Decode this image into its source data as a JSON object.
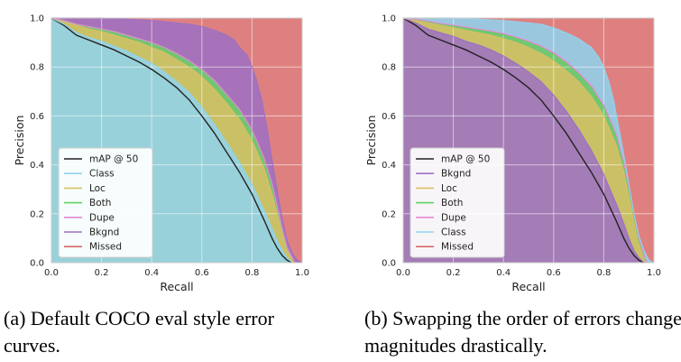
{
  "chart_data": [
    {
      "type": "area",
      "caption": "(a) Default COCO eval style error curves.",
      "xlabel": "Recall",
      "ylabel": "Precision",
      "xlim": [
        0,
        1
      ],
      "ylim": [
        0,
        1
      ],
      "xticks": [
        "0.0",
        "0.2",
        "0.4",
        "0.6",
        "0.8",
        "1.0"
      ],
      "yticks": [
        "0.0",
        "0.2",
        "0.4",
        "0.6",
        "0.8",
        "1.0"
      ],
      "grid": true,
      "legend_position": "bottom-left",
      "legend": [
        {
          "name": "mAP @ 50",
          "color": "#222222",
          "kind": "line"
        },
        {
          "name": "Class",
          "color": "#8fd3ee",
          "kind": "line"
        },
        {
          "name": "Loc",
          "color": "#d9c064",
          "kind": "line"
        },
        {
          "name": "Both",
          "color": "#5fd05f",
          "kind": "line"
        },
        {
          "name": "Dupe",
          "color": "#e68ad8",
          "kind": "line"
        },
        {
          "name": "Bkgnd",
          "color": "#9d70c4",
          "kind": "line"
        },
        {
          "name": "Missed",
          "color": "#d96a6a",
          "kind": "line"
        }
      ],
      "boundaries": [
        {
          "series": "mAP @ 50",
          "color": "#222222",
          "x": [
            0,
            0.05,
            0.1,
            0.15,
            0.2,
            0.25,
            0.3,
            0.35,
            0.4,
            0.45,
            0.5,
            0.55,
            0.6,
            0.65,
            0.7,
            0.75,
            0.8,
            0.85,
            0.88,
            0.9,
            0.92,
            0.94,
            0.96
          ],
          "y": [
            1.0,
            0.97,
            0.93,
            0.91,
            0.89,
            0.87,
            0.845,
            0.82,
            0.79,
            0.755,
            0.715,
            0.665,
            0.6,
            0.53,
            0.45,
            0.37,
            0.28,
            0.17,
            0.1,
            0.06,
            0.03,
            0.01,
            0.0
          ]
        },
        {
          "series": "Class",
          "color": "#8fd3ee",
          "x": [
            0,
            0.05,
            0.1,
            0.15,
            0.2,
            0.25,
            0.3,
            0.35,
            0.4,
            0.45,
            0.5,
            0.55,
            0.6,
            0.65,
            0.7,
            0.75,
            0.8,
            0.85,
            0.88,
            0.9,
            0.92,
            0.94,
            0.96
          ],
          "y": [
            1.0,
            0.975,
            0.94,
            0.92,
            0.905,
            0.885,
            0.865,
            0.84,
            0.815,
            0.78,
            0.74,
            0.695,
            0.635,
            0.565,
            0.49,
            0.41,
            0.32,
            0.21,
            0.14,
            0.09,
            0.05,
            0.02,
            0.0
          ]
        },
        {
          "series": "Loc",
          "color": "#d9c064",
          "x": [
            0,
            0.05,
            0.1,
            0.15,
            0.2,
            0.25,
            0.3,
            0.35,
            0.4,
            0.45,
            0.5,
            0.55,
            0.6,
            0.65,
            0.7,
            0.75,
            0.8,
            0.85,
            0.88,
            0.9,
            0.92,
            0.94,
            0.97
          ],
          "y": [
            1.0,
            0.985,
            0.97,
            0.955,
            0.945,
            0.93,
            0.915,
            0.9,
            0.88,
            0.86,
            0.83,
            0.8,
            0.76,
            0.71,
            0.65,
            0.585,
            0.5,
            0.38,
            0.28,
            0.2,
            0.12,
            0.05,
            0.0
          ]
        },
        {
          "series": "Both",
          "color": "#5fd05f",
          "x": [
            0,
            0.05,
            0.1,
            0.15,
            0.2,
            0.25,
            0.3,
            0.35,
            0.4,
            0.45,
            0.5,
            0.55,
            0.6,
            0.65,
            0.7,
            0.75,
            0.8,
            0.85,
            0.88,
            0.9,
            0.92,
            0.94,
            0.97
          ],
          "y": [
            1.0,
            0.99,
            0.975,
            0.965,
            0.955,
            0.945,
            0.93,
            0.915,
            0.9,
            0.88,
            0.855,
            0.825,
            0.79,
            0.745,
            0.685,
            0.625,
            0.54,
            0.42,
            0.32,
            0.23,
            0.14,
            0.06,
            0.0
          ]
        },
        {
          "series": "Dupe",
          "color": "#e68ad8",
          "x": [
            0,
            0.05,
            0.1,
            0.15,
            0.2,
            0.25,
            0.3,
            0.35,
            0.4,
            0.45,
            0.5,
            0.55,
            0.6,
            0.65,
            0.7,
            0.75,
            0.8,
            0.85,
            0.88,
            0.9,
            0.92,
            0.94,
            0.97
          ],
          "y": [
            1.0,
            0.99,
            0.975,
            0.965,
            0.955,
            0.945,
            0.93,
            0.915,
            0.9,
            0.88,
            0.855,
            0.825,
            0.79,
            0.745,
            0.687,
            0.627,
            0.543,
            0.423,
            0.323,
            0.233,
            0.143,
            0.063,
            0.0
          ]
        },
        {
          "series": "Bkgnd",
          "color": "#9d70c4",
          "x": [
            0,
            0.1,
            0.2,
            0.3,
            0.4,
            0.5,
            0.55,
            0.6,
            0.65,
            0.7,
            0.73,
            0.75,
            0.78,
            0.8,
            0.82,
            0.84,
            0.86,
            0.88,
            0.9,
            0.92,
            0.94,
            0.96,
            0.98,
            1.0
          ],
          "y": [
            1.0,
            1.0,
            1.0,
            0.995,
            0.99,
            0.98,
            0.975,
            0.965,
            0.95,
            0.93,
            0.91,
            0.88,
            0.85,
            0.8,
            0.74,
            0.66,
            0.55,
            0.42,
            0.3,
            0.18,
            0.09,
            0.04,
            0.01,
            0.0
          ]
        },
        {
          "series": "Missed",
          "color": "#d96a6a",
          "x": [
            0,
            1.0
          ],
          "y": [
            1.0,
            1.0
          ]
        }
      ]
    },
    {
      "type": "area",
      "caption": "(b) Swapping the order of errors changes magnitudes drastically.",
      "xlabel": "Recall",
      "ylabel": "Precision",
      "xlim": [
        0,
        1
      ],
      "ylim": [
        0,
        1
      ],
      "xticks": [
        "0.0",
        "0.2",
        "0.4",
        "0.6",
        "0.8",
        "1.0"
      ],
      "yticks": [
        "0.0",
        "0.2",
        "0.4",
        "0.6",
        "0.8",
        "1.0"
      ],
      "grid": true,
      "legend_position": "bottom-left",
      "legend": [
        {
          "name": "mAP @ 50",
          "color": "#222222",
          "kind": "line"
        },
        {
          "name": "Bkgnd",
          "color": "#9d70c4",
          "kind": "line"
        },
        {
          "name": "Loc",
          "color": "#d9c064",
          "kind": "line"
        },
        {
          "name": "Both",
          "color": "#5fd05f",
          "kind": "line"
        },
        {
          "name": "Dupe",
          "color": "#e68ad8",
          "kind": "line"
        },
        {
          "name": "Class",
          "color": "#8fd3ee",
          "kind": "line"
        },
        {
          "name": "Missed",
          "color": "#d96a6a",
          "kind": "line"
        }
      ],
      "boundaries": [
        {
          "series": "mAP @ 50",
          "color": "#222222",
          "x": [
            0,
            0.05,
            0.1,
            0.15,
            0.2,
            0.25,
            0.3,
            0.35,
            0.4,
            0.45,
            0.5,
            0.55,
            0.6,
            0.65,
            0.7,
            0.75,
            0.8,
            0.85,
            0.88,
            0.9,
            0.92,
            0.94,
            0.96
          ],
          "y": [
            1.0,
            0.97,
            0.93,
            0.91,
            0.89,
            0.87,
            0.845,
            0.82,
            0.79,
            0.755,
            0.715,
            0.665,
            0.6,
            0.53,
            0.45,
            0.37,
            0.28,
            0.17,
            0.1,
            0.06,
            0.03,
            0.01,
            0.0
          ]
        },
        {
          "series": "Bkgnd",
          "color": "#9d70c4",
          "x": [
            0,
            0.05,
            0.1,
            0.15,
            0.2,
            0.25,
            0.3,
            0.35,
            0.4,
            0.45,
            0.5,
            0.55,
            0.6,
            0.65,
            0.7,
            0.75,
            0.8,
            0.85,
            0.88,
            0.9,
            0.92,
            0.94,
            0.96
          ],
          "y": [
            1.0,
            0.98,
            0.955,
            0.94,
            0.925,
            0.905,
            0.89,
            0.87,
            0.845,
            0.815,
            0.78,
            0.74,
            0.685,
            0.62,
            0.545,
            0.46,
            0.36,
            0.24,
            0.16,
            0.1,
            0.05,
            0.02,
            0.0
          ]
        },
        {
          "series": "Loc",
          "color": "#d9c064",
          "x": [
            0,
            0.05,
            0.1,
            0.15,
            0.2,
            0.25,
            0.3,
            0.35,
            0.4,
            0.45,
            0.5,
            0.55,
            0.6,
            0.65,
            0.7,
            0.75,
            0.8,
            0.85,
            0.88,
            0.9,
            0.92,
            0.94,
            0.97
          ],
          "y": [
            1.0,
            0.99,
            0.98,
            0.97,
            0.96,
            0.95,
            0.94,
            0.93,
            0.915,
            0.9,
            0.88,
            0.855,
            0.825,
            0.785,
            0.74,
            0.68,
            0.6,
            0.48,
            0.37,
            0.27,
            0.17,
            0.08,
            0.0
          ]
        },
        {
          "series": "Both",
          "color": "#5fd05f",
          "x": [
            0,
            0.05,
            0.1,
            0.15,
            0.2,
            0.25,
            0.3,
            0.35,
            0.4,
            0.45,
            0.5,
            0.55,
            0.6,
            0.65,
            0.7,
            0.75,
            0.8,
            0.85,
            0.88,
            0.9,
            0.92,
            0.94,
            0.97
          ],
          "y": [
            1.0,
            0.995,
            0.985,
            0.975,
            0.968,
            0.96,
            0.952,
            0.943,
            0.932,
            0.918,
            0.9,
            0.88,
            0.852,
            0.815,
            0.77,
            0.715,
            0.635,
            0.515,
            0.4,
            0.3,
            0.19,
            0.09,
            0.0
          ]
        },
        {
          "series": "Dupe",
          "color": "#e68ad8",
          "x": [
            0,
            0.05,
            0.1,
            0.15,
            0.2,
            0.25,
            0.3,
            0.35,
            0.4,
            0.45,
            0.5,
            0.55,
            0.6,
            0.65,
            0.7,
            0.75,
            0.8,
            0.85,
            0.88,
            0.9,
            0.92,
            0.94,
            0.97
          ],
          "y": [
            1.0,
            0.995,
            0.987,
            0.978,
            0.971,
            0.963,
            0.955,
            0.947,
            0.937,
            0.923,
            0.906,
            0.886,
            0.859,
            0.823,
            0.778,
            0.724,
            0.645,
            0.525,
            0.41,
            0.31,
            0.2,
            0.1,
            0.0
          ]
        },
        {
          "series": "Class",
          "color": "#8fd3ee",
          "x": [
            0,
            0.1,
            0.2,
            0.3,
            0.4,
            0.5,
            0.55,
            0.6,
            0.65,
            0.7,
            0.75,
            0.78,
            0.8,
            0.82,
            0.84,
            0.86,
            0.88,
            0.9,
            0.92,
            0.94,
            0.96,
            0.98,
            1.0
          ],
          "y": [
            1.0,
            1.0,
            1.0,
            0.995,
            0.99,
            0.98,
            0.975,
            0.96,
            0.94,
            0.915,
            0.88,
            0.84,
            0.8,
            0.74,
            0.66,
            0.55,
            0.44,
            0.32,
            0.2,
            0.11,
            0.05,
            0.01,
            0.0
          ]
        },
        {
          "series": "Missed",
          "color": "#d96a6a",
          "x": [
            0,
            1.0
          ],
          "y": [
            1.0,
            1.0
          ]
        }
      ]
    }
  ]
}
